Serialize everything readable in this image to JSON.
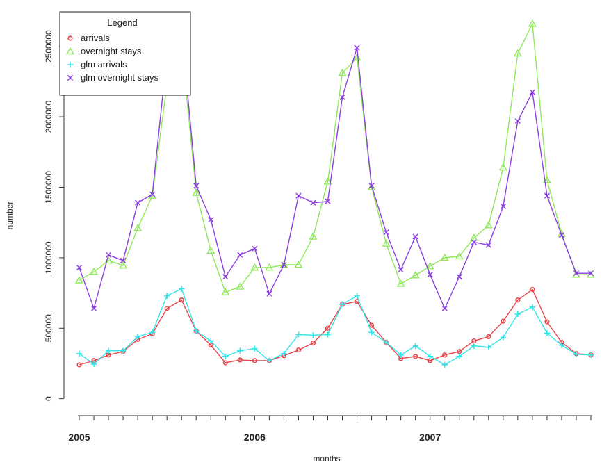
{
  "chart_data": {
    "type": "line",
    "title": "",
    "xlabel": "months",
    "ylabel": "number",
    "x_tick_labels": [
      "2005",
      "2006",
      "2007"
    ],
    "y_tick_labels": [
      "0",
      "500000",
      "1000000",
      "1500000",
      "2000000",
      "2500000"
    ],
    "y_ticks": [
      0,
      500000,
      1000000,
      1500000,
      2000000,
      2500000
    ],
    "ylim": [
      -120000,
      2740000
    ],
    "xlim": [
      "2005-01",
      "2007-12"
    ],
    "legend": {
      "title": "Legend",
      "position": "top-left",
      "box": true
    },
    "grid": false,
    "months": [
      "2005-01",
      "2005-02",
      "2005-03",
      "2005-04",
      "2005-05",
      "2005-06",
      "2005-07",
      "2005-08",
      "2005-09",
      "2005-10",
      "2005-11",
      "2005-12",
      "2006-01",
      "2006-02",
      "2006-03",
      "2006-04",
      "2006-05",
      "2006-06",
      "2006-07",
      "2006-08",
      "2006-09",
      "2006-10",
      "2006-11",
      "2006-12",
      "2007-01",
      "2007-02",
      "2007-03",
      "2007-04",
      "2007-05",
      "2007-06",
      "2007-07",
      "2007-08",
      "2007-09",
      "2007-10",
      "2007-11",
      "2007-12"
    ],
    "series": [
      {
        "name": "arrivals",
        "color": "#e8454a",
        "marker": "circle",
        "values": [
          240000,
          270000,
          310000,
          335000,
          420000,
          460000,
          640000,
          700000,
          480000,
          380000,
          255000,
          275000,
          270000,
          270000,
          305000,
          345000,
          395000,
          500000,
          670000,
          690000,
          520000,
          400000,
          285000,
          300000,
          270000,
          310000,
          335000,
          410000,
          440000,
          550000,
          700000,
          775000,
          545000,
          400000,
          320000,
          310000
        ]
      },
      {
        "name": "overnight stays",
        "color": "#8ee85a",
        "marker": "triangle",
        "values": [
          840000,
          900000,
          980000,
          945000,
          1210000,
          1440000,
          2230000,
          2510000,
          1460000,
          1050000,
          755000,
          795000,
          930000,
          930000,
          950000,
          950000,
          1150000,
          1540000,
          2310000,
          2420000,
          1500000,
          1100000,
          815000,
          875000,
          940000,
          1000000,
          1010000,
          1140000,
          1230000,
          1640000,
          2450000,
          2660000,
          1550000,
          1170000,
          880000,
          880000
        ]
      },
      {
        "name": "glm arrivals",
        "color": "#32e5ea",
        "marker": "plus",
        "values": [
          320000,
          245000,
          340000,
          340000,
          440000,
          470000,
          730000,
          780000,
          480000,
          410000,
          300000,
          340000,
          355000,
          270000,
          320000,
          455000,
          450000,
          455000,
          670000,
          730000,
          470000,
          400000,
          310000,
          375000,
          300000,
          240000,
          300000,
          375000,
          365000,
          435000,
          600000,
          650000,
          465000,
          380000,
          315000,
          310000
        ]
      },
      {
        "name": "glm overnight stays",
        "color": "#8b3fe0",
        "marker": "cross",
        "values": [
          930000,
          640000,
          1020000,
          980000,
          1390000,
          1450000,
          2440000,
          2620000,
          1510000,
          1270000,
          865000,
          1020000,
          1065000,
          745000,
          950000,
          1440000,
          1390000,
          1400000,
          2140000,
          2490000,
          1510000,
          1180000,
          915000,
          1150000,
          880000,
          640000,
          865000,
          1110000,
          1090000,
          1365000,
          1970000,
          2175000,
          1440000,
          1160000,
          890000,
          890000
        ]
      }
    ]
  }
}
